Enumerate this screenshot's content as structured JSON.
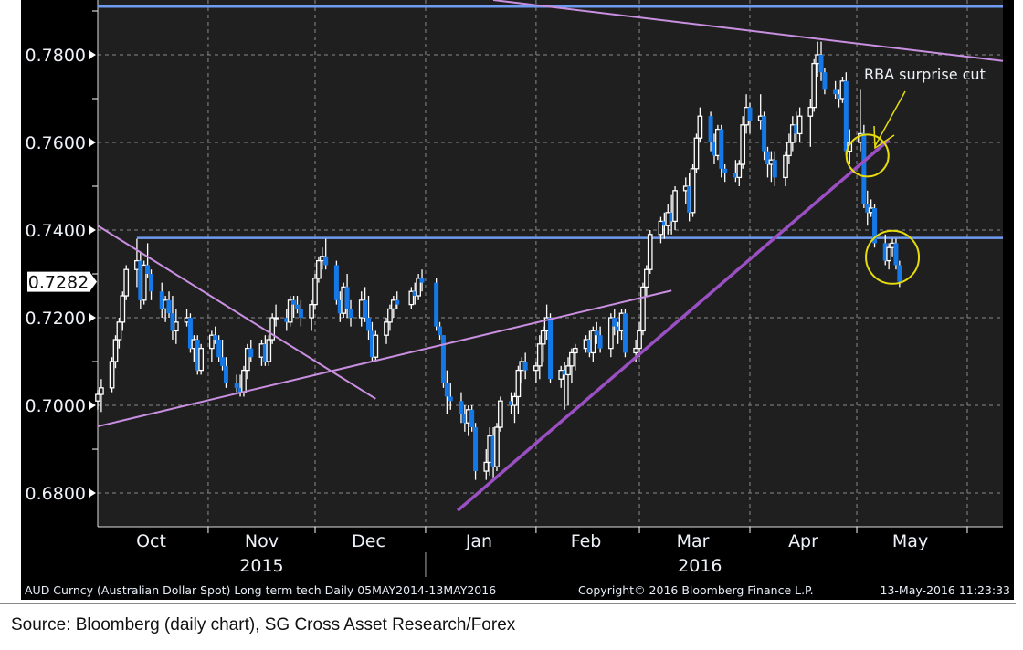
{
  "chart_data": {
    "type": "candlestick",
    "title": "",
    "x_axis": {
      "type": "date",
      "range": [
        "2015-10-01",
        "2016-06-11"
      ],
      "month_ticks": [
        "2015-11-01",
        "2015-12-01",
        "2016-01-01",
        "2016-02-01",
        "2016-03-01",
        "2016-04-01",
        "2016-05-01",
        "2016-06-01"
      ],
      "month_labels": [
        {
          "label": "Oct",
          "date": "2015-10-16"
        },
        {
          "label": "Nov",
          "date": "2015-11-16"
        },
        {
          "label": "Dec",
          "date": "2015-12-16"
        },
        {
          "label": "Jan",
          "date": "2016-01-16"
        },
        {
          "label": "Feb",
          "date": "2016-02-15"
        },
        {
          "label": "Mar",
          "date": "2016-03-16"
        },
        {
          "label": "Apr",
          "date": "2016-04-16"
        },
        {
          "label": "May",
          "date": "2016-05-16"
        }
      ],
      "year_labels": [
        {
          "label": "2015",
          "date": "2015-11-16"
        },
        {
          "label": "2016",
          "date": "2016-03-18"
        }
      ],
      "year_separator": "2016-01-01"
    },
    "y_axis": {
      "range": [
        0.6723,
        0.7925
      ],
      "ticks": [
        "0.6800",
        "0.7000",
        "0.7200",
        "0.7400",
        "0.7600",
        "0.7800"
      ],
      "minor_ticks": [
        0.69,
        0.71,
        0.73,
        0.75,
        0.77,
        0.79
      ],
      "grid": true,
      "last_price": "0.7282"
    },
    "colors": {
      "up": "#ffffff",
      "down": "#1478e6",
      "background": "#1f1f1f",
      "grid": "#8a8a8a",
      "horizontal_line": "#6f9cf0",
      "trend_light": "#c98fe0",
      "trend_strong": "#9a4fc2",
      "annotation": "#e6dc10"
    },
    "candles": [
      [
        "2015-10-01",
        0.701,
        0.7035,
        0.699,
        0.7025
      ],
      [
        "2015-10-02",
        0.7025,
        0.706,
        0.6985,
        0.704
      ],
      [
        "2015-10-05",
        0.704,
        0.711,
        0.703,
        0.71
      ],
      [
        "2015-10-06",
        0.71,
        0.716,
        0.7085,
        0.715
      ],
      [
        "2015-10-07",
        0.715,
        0.72,
        0.713,
        0.719
      ],
      [
        "2015-10-08",
        0.719,
        0.726,
        0.717,
        0.725
      ],
      [
        "2015-10-09",
        0.725,
        0.732,
        0.724,
        0.731
      ],
      [
        "2015-10-12",
        0.731,
        0.738,
        0.727,
        0.733
      ],
      [
        "2015-10-13",
        0.733,
        0.735,
        0.722,
        0.724
      ],
      [
        "2015-10-14",
        0.724,
        0.733,
        0.723,
        0.732
      ],
      [
        "2015-10-15",
        0.732,
        0.737,
        0.729,
        0.73
      ],
      [
        "2015-10-16",
        0.73,
        0.731,
        0.724,
        0.726
      ],
      [
        "2015-10-19",
        0.726,
        0.728,
        0.72,
        0.722
      ],
      [
        "2015-10-20",
        0.722,
        0.725,
        0.719,
        0.724
      ],
      [
        "2015-10-21",
        0.724,
        0.726,
        0.72,
        0.721
      ],
      [
        "2015-10-22",
        0.721,
        0.725,
        0.715,
        0.717
      ],
      [
        "2015-10-23",
        0.717,
        0.722,
        0.714,
        0.719
      ],
      [
        "2015-10-26",
        0.719,
        0.722,
        0.718,
        0.72
      ],
      [
        "2015-10-27",
        0.72,
        0.721,
        0.712,
        0.713
      ],
      [
        "2015-10-28",
        0.713,
        0.716,
        0.71,
        0.715
      ],
      [
        "2015-10-29",
        0.715,
        0.716,
        0.707,
        0.708
      ],
      [
        "2015-10-30",
        0.708,
        0.714,
        0.707,
        0.713
      ],
      [
        "2015-11-02",
        0.713,
        0.717,
        0.71,
        0.716
      ],
      [
        "2015-11-03",
        0.716,
        0.718,
        0.714,
        0.715
      ],
      [
        "2015-11-04",
        0.715,
        0.716,
        0.71,
        0.711
      ],
      [
        "2015-11-05",
        0.711,
        0.715,
        0.708,
        0.709
      ],
      [
        "2015-11-06",
        0.709,
        0.711,
        0.704,
        0.705
      ],
      [
        "2015-11-09",
        0.705,
        0.707,
        0.703,
        0.704
      ],
      [
        "2015-11-10",
        0.704,
        0.707,
        0.702,
        0.703
      ],
      [
        "2015-11-11",
        0.703,
        0.709,
        0.702,
        0.708
      ],
      [
        "2015-11-12",
        0.708,
        0.714,
        0.706,
        0.713
      ],
      [
        "2015-11-13",
        0.713,
        0.715,
        0.71,
        0.711
      ],
      [
        "2015-11-16",
        0.711,
        0.715,
        0.709,
        0.714
      ],
      [
        "2015-11-17",
        0.714,
        0.716,
        0.709,
        0.71
      ],
      [
        "2015-11-18",
        0.71,
        0.716,
        0.709,
        0.715
      ],
      [
        "2015-11-19",
        0.715,
        0.721,
        0.714,
        0.72
      ],
      [
        "2015-11-20",
        0.72,
        0.723,
        0.718,
        0.72
      ],
      [
        "2015-11-23",
        0.72,
        0.722,
        0.717,
        0.719
      ],
      [
        "2015-11-24",
        0.719,
        0.725,
        0.718,
        0.724
      ],
      [
        "2015-11-25",
        0.724,
        0.725,
        0.72,
        0.723
      ],
      [
        "2015-11-26",
        0.723,
        0.725,
        0.721,
        0.722
      ],
      [
        "2015-11-27",
        0.722,
        0.724,
        0.718,
        0.72
      ],
      [
        "2015-11-30",
        0.72,
        0.724,
        0.717,
        0.723
      ],
      [
        "2015-12-01",
        0.723,
        0.73,
        0.722,
        0.729
      ],
      [
        "2015-12-02",
        0.729,
        0.734,
        0.728,
        0.733
      ],
      [
        "2015-12-03",
        0.733,
        0.736,
        0.731,
        0.734
      ],
      [
        "2015-12-04",
        0.734,
        0.738,
        0.731,
        0.732
      ],
      [
        "2015-12-07",
        0.732,
        0.733,
        0.723,
        0.724
      ],
      [
        "2015-12-08",
        0.724,
        0.726,
        0.719,
        0.721
      ],
      [
        "2015-12-09",
        0.721,
        0.728,
        0.72,
        0.727
      ],
      [
        "2015-12-10",
        0.727,
        0.73,
        0.72,
        0.722
      ],
      [
        "2015-12-11",
        0.722,
        0.724,
        0.718,
        0.72
      ],
      [
        "2015-12-14",
        0.72,
        0.726,
        0.718,
        0.724
      ],
      [
        "2015-12-15",
        0.724,
        0.727,
        0.719,
        0.72
      ],
      [
        "2015-12-16",
        0.72,
        0.725,
        0.715,
        0.717
      ],
      [
        "2015-12-17",
        0.717,
        0.719,
        0.71,
        0.711
      ],
      [
        "2015-12-18",
        0.711,
        0.717,
        0.71,
        0.716
      ],
      [
        "2015-12-21",
        0.716,
        0.72,
        0.714,
        0.719
      ],
      [
        "2015-12-22",
        0.719,
        0.723,
        0.717,
        0.722
      ],
      [
        "2015-12-23",
        0.722,
        0.725,
        0.72,
        0.724
      ],
      [
        "2015-12-24",
        0.724,
        0.726,
        0.722,
        0.723
      ],
      [
        "2015-12-28",
        0.723,
        0.727,
        0.722,
        0.726
      ],
      [
        "2015-12-29",
        0.726,
        0.728,
        0.723,
        0.725
      ],
      [
        "2015-12-30",
        0.725,
        0.73,
        0.724,
        0.729
      ],
      [
        "2015-12-31",
        0.729,
        0.731,
        0.726,
        0.728
      ],
      [
        "2016-01-04",
        0.728,
        0.729,
        0.717,
        0.718
      ],
      [
        "2016-01-05",
        0.718,
        0.719,
        0.715,
        0.716
      ],
      [
        "2016-01-06",
        0.716,
        0.716,
        0.704,
        0.705
      ],
      [
        "2016-01-07",
        0.705,
        0.708,
        0.698,
        0.702
      ],
      [
        "2016-01-08",
        0.702,
        0.705,
        0.699,
        0.701
      ],
      [
        "2016-01-11",
        0.701,
        0.703,
        0.696,
        0.698
      ],
      [
        "2016-01-12",
        0.698,
        0.7,
        0.694,
        0.696
      ],
      [
        "2016-01-13",
        0.696,
        0.7,
        0.693,
        0.699
      ],
      [
        "2016-01-14",
        0.699,
        0.7,
        0.694,
        0.695
      ],
      [
        "2016-01-15",
        0.695,
        0.696,
        0.683,
        0.685
      ],
      [
        "2016-01-18",
        0.685,
        0.69,
        0.683,
        0.687
      ],
      [
        "2016-01-19",
        0.687,
        0.695,
        0.684,
        0.693
      ],
      [
        "2016-01-20",
        0.693,
        0.695,
        0.683,
        0.686
      ],
      [
        "2016-01-21",
        0.686,
        0.696,
        0.685,
        0.695
      ],
      [
        "2016-01-22",
        0.695,
        0.702,
        0.694,
        0.701
      ],
      [
        "2016-01-25",
        0.701,
        0.703,
        0.698,
        0.7
      ],
      [
        "2016-01-26",
        0.7,
        0.703,
        0.696,
        0.702
      ],
      [
        "2016-01-27",
        0.702,
        0.709,
        0.698,
        0.708
      ],
      [
        "2016-01-28",
        0.708,
        0.711,
        0.705,
        0.71
      ],
      [
        "2016-01-29",
        0.71,
        0.712,
        0.706,
        0.708
      ],
      [
        "2016-02-01",
        0.708,
        0.71,
        0.705,
        0.709
      ],
      [
        "2016-02-02",
        0.709,
        0.716,
        0.706,
        0.714
      ],
      [
        "2016-02-03",
        0.714,
        0.718,
        0.71,
        0.717
      ],
      [
        "2016-02-04",
        0.717,
        0.723,
        0.715,
        0.72
      ],
      [
        "2016-02-05",
        0.72,
        0.721,
        0.705,
        0.706
      ],
      [
        "2016-02-08",
        0.706,
        0.709,
        0.704,
        0.708
      ],
      [
        "2016-02-09",
        0.708,
        0.71,
        0.699,
        0.707
      ],
      [
        "2016-02-10",
        0.707,
        0.711,
        0.7,
        0.709
      ],
      [
        "2016-02-11",
        0.709,
        0.713,
        0.705,
        0.712
      ],
      [
        "2016-02-12",
        0.712,
        0.714,
        0.708,
        0.713
      ],
      [
        "2016-02-15",
        0.713,
        0.716,
        0.712,
        0.715
      ],
      [
        "2016-02-16",
        0.715,
        0.717,
        0.711,
        0.712
      ],
      [
        "2016-02-17",
        0.712,
        0.718,
        0.71,
        0.717
      ],
      [
        "2016-02-18",
        0.717,
        0.719,
        0.714,
        0.716
      ],
      [
        "2016-02-19",
        0.716,
        0.718,
        0.712,
        0.713
      ],
      [
        "2016-02-22",
        0.713,
        0.721,
        0.711,
        0.72
      ],
      [
        "2016-02-23",
        0.72,
        0.722,
        0.716,
        0.718
      ],
      [
        "2016-02-24",
        0.718,
        0.719,
        0.714,
        0.717
      ],
      [
        "2016-02-25",
        0.717,
        0.722,
        0.715,
        0.721
      ],
      [
        "2016-02-26",
        0.721,
        0.722,
        0.711,
        0.712
      ],
      [
        "2016-02-29",
        0.712,
        0.715,
        0.71,
        0.713
      ],
      [
        "2016-03-01",
        0.713,
        0.719,
        0.711,
        0.717
      ],
      [
        "2016-03-02",
        0.717,
        0.728,
        0.716,
        0.727
      ],
      [
        "2016-03-03",
        0.727,
        0.732,
        0.725,
        0.731
      ],
      [
        "2016-03-04",
        0.731,
        0.74,
        0.73,
        0.739
      ],
      [
        "2016-03-07",
        0.739,
        0.743,
        0.737,
        0.742
      ],
      [
        "2016-03-08",
        0.742,
        0.744,
        0.738,
        0.741
      ],
      [
        "2016-03-09",
        0.741,
        0.746,
        0.739,
        0.744
      ],
      [
        "2016-03-10",
        0.744,
        0.748,
        0.739,
        0.742
      ],
      [
        "2016-03-11",
        0.742,
        0.75,
        0.74,
        0.749
      ],
      [
        "2016-03-14",
        0.749,
        0.752,
        0.746,
        0.75
      ],
      [
        "2016-03-15",
        0.75,
        0.753,
        0.742,
        0.744
      ],
      [
        "2016-03-16",
        0.744,
        0.755,
        0.743,
        0.754
      ],
      [
        "2016-03-17",
        0.754,
        0.762,
        0.753,
        0.761
      ],
      [
        "2016-03-18",
        0.761,
        0.768,
        0.76,
        0.766
      ],
      [
        "2016-03-21",
        0.766,
        0.767,
        0.758,
        0.76
      ],
      [
        "2016-03-22",
        0.76,
        0.762,
        0.755,
        0.757
      ],
      [
        "2016-03-23",
        0.757,
        0.764,
        0.756,
        0.763
      ],
      [
        "2016-03-24",
        0.763,
        0.764,
        0.752,
        0.754
      ],
      [
        "2016-03-25",
        0.754,
        0.755,
        0.751,
        0.753
      ],
      [
        "2016-03-28",
        0.753,
        0.756,
        0.751,
        0.752
      ],
      [
        "2016-03-29",
        0.752,
        0.756,
        0.75,
        0.755
      ],
      [
        "2016-03-30",
        0.755,
        0.766,
        0.754,
        0.764
      ],
      [
        "2016-03-31",
        0.764,
        0.771,
        0.762,
        0.768
      ],
      [
        "2016-04-01",
        0.768,
        0.769,
        0.762,
        0.765
      ],
      [
        "2016-04-04",
        0.765,
        0.771,
        0.763,
        0.766
      ],
      [
        "2016-04-05",
        0.766,
        0.767,
        0.756,
        0.758
      ],
      [
        "2016-04-06",
        0.758,
        0.759,
        0.752,
        0.755
      ],
      [
        "2016-04-07",
        0.755,
        0.758,
        0.751,
        0.756
      ],
      [
        "2016-04-08",
        0.756,
        0.758,
        0.75,
        0.752
      ],
      [
        "2016-04-11",
        0.752,
        0.758,
        0.75,
        0.757
      ],
      [
        "2016-04-12",
        0.757,
        0.762,
        0.755,
        0.76
      ],
      [
        "2016-04-13",
        0.76,
        0.766,
        0.758,
        0.764
      ],
      [
        "2016-04-14",
        0.764,
        0.767,
        0.76,
        0.762
      ],
      [
        "2016-04-15",
        0.762,
        0.768,
        0.76,
        0.766
      ],
      [
        "2016-04-18",
        0.766,
        0.77,
        0.759,
        0.768
      ],
      [
        "2016-04-19",
        0.768,
        0.779,
        0.767,
        0.778
      ],
      [
        "2016-04-20",
        0.778,
        0.783,
        0.775,
        0.78
      ],
      [
        "2016-04-21",
        0.78,
        0.783,
        0.774,
        0.776
      ],
      [
        "2016-04-22",
        0.776,
        0.777,
        0.771,
        0.772
      ],
      [
        "2016-04-25",
        0.772,
        0.774,
        0.77,
        0.771
      ],
      [
        "2016-04-26",
        0.771,
        0.772,
        0.768,
        0.77
      ],
      [
        "2016-04-27",
        0.77,
        0.775,
        0.769,
        0.774
      ],
      [
        "2016-04-28",
        0.774,
        0.776,
        0.757,
        0.758
      ],
      [
        "2016-04-29",
        0.758,
        0.763,
        0.755,
        0.76
      ],
      [
        "2016-05-02",
        0.76,
        0.772,
        0.758,
        0.762
      ],
      [
        "2016-05-03",
        0.762,
        0.764,
        0.745,
        0.746
      ],
      [
        "2016-05-04",
        0.746,
        0.749,
        0.741,
        0.744
      ],
      [
        "2016-05-05",
        0.744,
        0.747,
        0.743,
        0.745
      ],
      [
        "2016-05-06",
        0.745,
        0.746,
        0.736,
        0.737
      ],
      [
        "2016-05-09",
        0.737,
        0.739,
        0.732,
        0.733
      ],
      [
        "2016-05-10",
        0.733,
        0.737,
        0.731,
        0.736
      ],
      [
        "2016-05-11",
        0.736,
        0.738,
        0.734,
        0.737
      ],
      [
        "2016-05-12",
        0.737,
        0.738,
        0.731,
        0.732
      ],
      [
        "2016-05-13",
        0.732,
        0.733,
        0.727,
        0.7282
      ]
    ],
    "horizontal_lines": [
      {
        "price": 0.791,
        "from": "2015-10-01"
      },
      {
        "price": 0.7382,
        "from": "2015-10-12"
      }
    ],
    "trendlines": [
      {
        "style": "light",
        "from": [
          "2015-10-01",
          0.741
        ],
        "to": [
          "2015-12-18",
          0.7015
        ]
      },
      {
        "style": "light",
        "from": [
          "2015-10-01",
          0.6952
        ],
        "to": [
          "2016-03-10",
          0.7262
        ]
      },
      {
        "style": "strong",
        "from": [
          "2016-01-10",
          0.676
        ],
        "to": [
          "2016-05-10",
          0.7606
        ]
      },
      {
        "style": "light",
        "from": [
          "2016-01-20",
          0.7925
        ],
        "to": [
          "2016-06-11",
          0.7786
        ]
      }
    ],
    "annotations": {
      "text": "RBA surprise cut",
      "circles": [
        {
          "date": "2016-05-04",
          "price": 0.757
        },
        {
          "date": "2016-05-11",
          "price": 0.7338
        }
      ]
    }
  },
  "footer": {
    "security": "AUD Curncy (Australian Dollar Spot) Long term tech  Daily 05MAY2014-13MAY2016",
    "copyright": "Copyright© 2016 Bloomberg Finance L.P.",
    "timestamp": "13-May-2016 11:23:33"
  },
  "caption": "Source: Bloomberg (daily chart), SG Cross Asset Research/Forex"
}
